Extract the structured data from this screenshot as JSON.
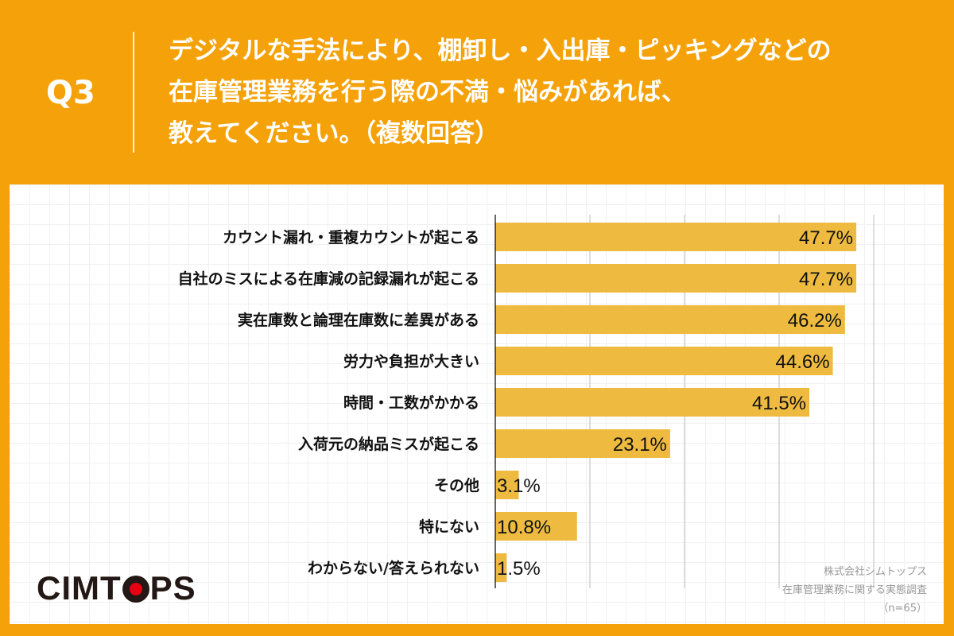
{
  "header": {
    "question_number": "Q3",
    "title_lines": [
      "デジタルな手法により、棚卸し・入出庫・ピッキングなどの",
      "在庫管理業務を行う際の不満・悩みがあれば、",
      "教えてください。（複数回答）"
    ]
  },
  "colors": {
    "background": "#f5a20a",
    "bar": "#eebb40",
    "logo_dot": "#e60012"
  },
  "logo": {
    "text": "CIMTOPS"
  },
  "source": {
    "company": "株式会社シムトップス",
    "survey": "在庫管理業務に関する実態調査",
    "n": "（n=65）"
  },
  "chart_data": {
    "type": "bar",
    "orientation": "horizontal",
    "categories": [
      "カウント漏れ・重複カウントが起こる",
      "自社のミスによる在庫減の記録漏れが起こる",
      "実在庫数と論理在庫数に差異がある",
      "労力や負担が大きい",
      "時間・工数がかかる",
      "入荷元の納品ミスが起こる",
      "その他",
      "特にない",
      "わからない/答えられない"
    ],
    "values": [
      47.7,
      47.7,
      46.2,
      44.6,
      41.5,
      23.1,
      3.1,
      10.8,
      1.5
    ],
    "data_labels": [
      "47.7%",
      "47.7%",
      "46.2%",
      "44.6%",
      "41.5%",
      "23.1%",
      "3.1%",
      "10.8%",
      "1.5%"
    ],
    "xlim": [
      0,
      50
    ],
    "grid_step": 12.5,
    "grid": true,
    "unit": "%"
  }
}
